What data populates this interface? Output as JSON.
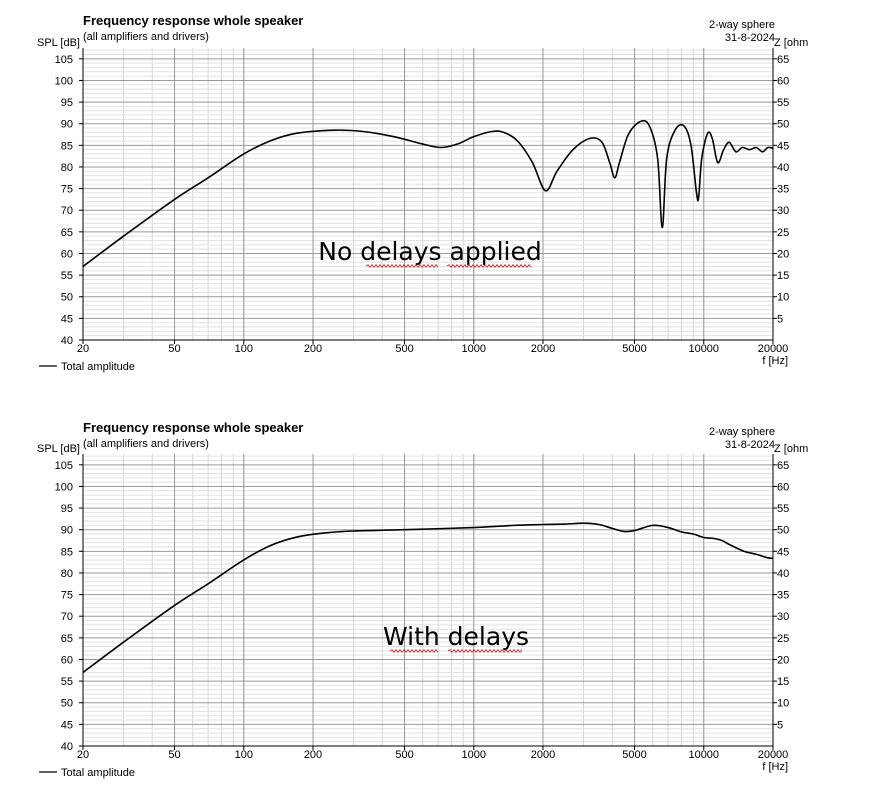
{
  "chart_data": [
    {
      "type": "line",
      "title": "Frequency response whole speaker",
      "subtitle": "(all amplifiers and drivers)",
      "top_right_line1": "2-way sphere",
      "top_right_line2": "31-8-2024",
      "ylabel": "SPL [dB]",
      "y2label": "Z [ohm",
      "xlabel": "f [Hz]",
      "x_scale": "log",
      "xlim": [
        20,
        20000
      ],
      "ylim": [
        40,
        107.5
      ],
      "y2lim": [
        0,
        67.5
      ],
      "xticks": [
        20,
        50,
        100,
        200,
        500,
        1000,
        2000,
        5000,
        10000,
        20000
      ],
      "xtick_labels": [
        "20",
        "50",
        "100",
        "200",
        "500",
        "1000",
        "2000",
        "5000",
        "10000",
        "20000"
      ],
      "yticks": [
        "40",
        "45",
        "50",
        "55",
        "60",
        "65",
        "70",
        "75",
        "80",
        "85",
        "90",
        "95",
        "100",
        "105"
      ],
      "y2ticks": [
        "5",
        "10",
        "15",
        "20",
        "25",
        "30",
        "35",
        "40",
        "45",
        "50",
        "55",
        "60",
        "65"
      ],
      "grid": true,
      "legend": "bottom-left",
      "annotation": "No delays applied",
      "series": [
        {
          "name": "Total amplitude",
          "x": [
            20,
            30,
            50,
            70,
            100,
            130,
            170,
            250,
            330,
            450,
            600,
            720,
            850,
            1000,
            1200,
            1350,
            1550,
            1800,
            2050,
            2300,
            2700,
            3200,
            3600,
            3900,
            4100,
            4300,
            4700,
            5300,
            5800,
            6300,
            6600,
            6900,
            7500,
            8200,
            8800,
            9300,
            9500,
            9800,
            10400,
            10900,
            11500,
            12200,
            12900,
            13800,
            14700,
            15800,
            16900,
            18000,
            19000,
            20000
          ],
          "y": [
            57,
            64,
            72.5,
            77.5,
            83,
            86,
            87.8,
            88.5,
            88.2,
            87,
            85.3,
            84.5,
            85.3,
            87,
            88.2,
            88,
            86,
            81,
            74.5,
            79,
            84,
            86.6,
            85.8,
            81,
            77.5,
            81,
            87.5,
            90.5,
            89.5,
            82,
            66,
            82,
            88.5,
            89.5,
            85,
            74,
            73,
            82,
            87.8,
            86.5,
            81,
            84,
            85.7,
            83.5,
            84.5,
            84,
            84.5,
            83.5,
            84.5,
            84.3
          ]
        }
      ]
    },
    {
      "type": "line",
      "title": "Frequency response whole speaker",
      "subtitle": "(all amplifiers and drivers)",
      "top_right_line1": "2-way sphere",
      "top_right_line2": "31-8-2024",
      "ylabel": "SPL [dB]",
      "y2label": "Z [ohm",
      "xlabel": "f [Hz]",
      "x_scale": "log",
      "xlim": [
        20,
        20000
      ],
      "ylim": [
        40,
        107.5
      ],
      "y2lim": [
        0,
        67.5
      ],
      "xticks": [
        20,
        50,
        100,
        200,
        500,
        1000,
        2000,
        5000,
        10000,
        20000
      ],
      "xtick_labels": [
        "20",
        "50",
        "100",
        "200",
        "500",
        "1000",
        "2000",
        "5000",
        "10000",
        "20000"
      ],
      "yticks": [
        "40",
        "45",
        "50",
        "55",
        "60",
        "65",
        "70",
        "75",
        "80",
        "85",
        "90",
        "95",
        "100",
        "105"
      ],
      "y2ticks": [
        "5",
        "10",
        "15",
        "20",
        "25",
        "30",
        "35",
        "40",
        "45",
        "50",
        "55",
        "60",
        "65"
      ],
      "grid": true,
      "legend": "bottom-left",
      "annotation": "With delays",
      "series": [
        {
          "name": "Total amplitude",
          "x": [
            20,
            30,
            50,
            70,
            100,
            130,
            170,
            220,
            300,
            500,
            1000,
            1500,
            2000,
            2500,
            3000,
            3500,
            4000,
            4500,
            5000,
            6000,
            7000,
            8000,
            9000,
            10000,
            11000,
            12000,
            13000,
            15000,
            17000,
            19000,
            20000
          ],
          "y": [
            57,
            64,
            72.5,
            77.5,
            83,
            86.3,
            88.3,
            89.2,
            89.7,
            90,
            90.5,
            91,
            91.2,
            91.3,
            91.5,
            91.2,
            90.3,
            89.6,
            89.8,
            91,
            90.5,
            89.5,
            89,
            88.2,
            88,
            87.5,
            86.5,
            85,
            84.3,
            83.5,
            83.4
          ]
        }
      ]
    }
  ]
}
